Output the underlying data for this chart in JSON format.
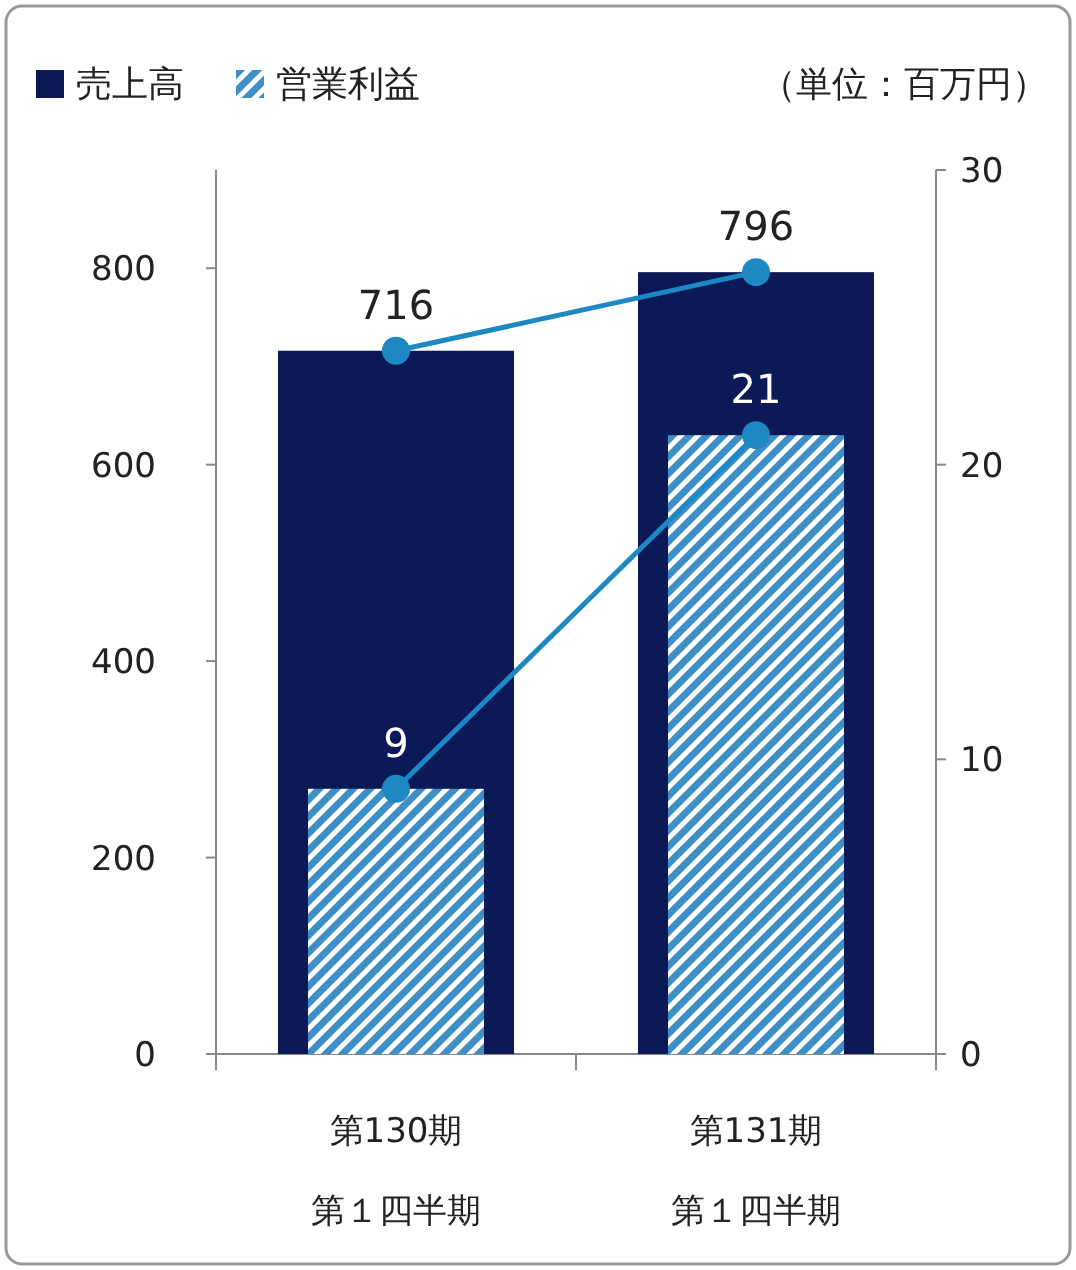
{
  "chart_data": {
    "type": "bar",
    "categories": [
      "第130期第１四半期",
      "第131期第１四半期"
    ],
    "series": [
      {
        "name": "売上高",
        "color": "#0c1957",
        "values": [
          716,
          796
        ]
      },
      {
        "name": "営業利益",
        "axis": "y2",
        "color": "#3d8fc6",
        "values": [
          9,
          21
        ]
      },
      {
        "type": "line",
        "color": "#1e88c4",
        "values": [
          716,
          796
        ],
        "value_labels": [
          "716",
          "796"
        ]
      },
      {
        "type": "line",
        "axis": "y2",
        "color": "#1e88c4",
        "values": [
          9,
          21
        ],
        "value_labels": [
          "9",
          "21"
        ]
      }
    ],
    "ylim": [
      0,
      900
    ],
    "yticks": [
      0,
      200,
      400,
      600,
      800
    ],
    "y2lim": [
      0,
      30
    ],
    "y2ticks": [
      0,
      10,
      20,
      30
    ],
    "legend": "top left",
    "marker": "circle",
    "annotations": [
      "（単位：百万円）"
    ]
  }
}
